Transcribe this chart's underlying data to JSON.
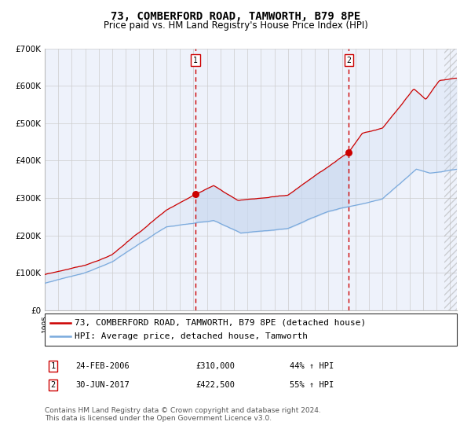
{
  "title": "73, COMBERFORD ROAD, TAMWORTH, B79 8PE",
  "subtitle": "Price paid vs. HM Land Registry's House Price Index (HPI)",
  "ylim": [
    0,
    700000
  ],
  "yticks": [
    0,
    100000,
    200000,
    300000,
    400000,
    500000,
    600000,
    700000
  ],
  "ytick_labels": [
    "£0",
    "£100K",
    "£200K",
    "£300K",
    "£400K",
    "£500K",
    "£600K",
    "£700K"
  ],
  "xlim_start": 1995.0,
  "xlim_end": 2025.5,
  "background_color": "#ffffff",
  "plot_bg_color": "#eef2fb",
  "grid_color": "#cccccc",
  "red_line_color": "#cc0000",
  "blue_line_color": "#7aaadd",
  "fill_between_color": "#c8d8f0",
  "marker1_x": 2006.15,
  "marker1_y": 310000,
  "marker2_x": 2017.5,
  "marker2_y": 422500,
  "vline1_x": 2006.15,
  "vline2_x": 2017.5,
  "legend_red": "73, COMBERFORD ROAD, TAMWORTH, B79 8PE (detached house)",
  "legend_blue": "HPI: Average price, detached house, Tamworth",
  "sale1_date": "24-FEB-2006",
  "sale1_price": "£310,000",
  "sale1_hpi": "44% ↑ HPI",
  "sale2_date": "30-JUN-2017",
  "sale2_price": "£422,500",
  "sale2_hpi": "55% ↑ HPI",
  "footer": "Contains HM Land Registry data © Crown copyright and database right 2024.\nThis data is licensed under the Open Government Licence v3.0.",
  "title_fontsize": 10,
  "subtitle_fontsize": 8.5,
  "tick_fontsize": 7.5,
  "legend_fontsize": 8,
  "footer_fontsize": 6.5
}
